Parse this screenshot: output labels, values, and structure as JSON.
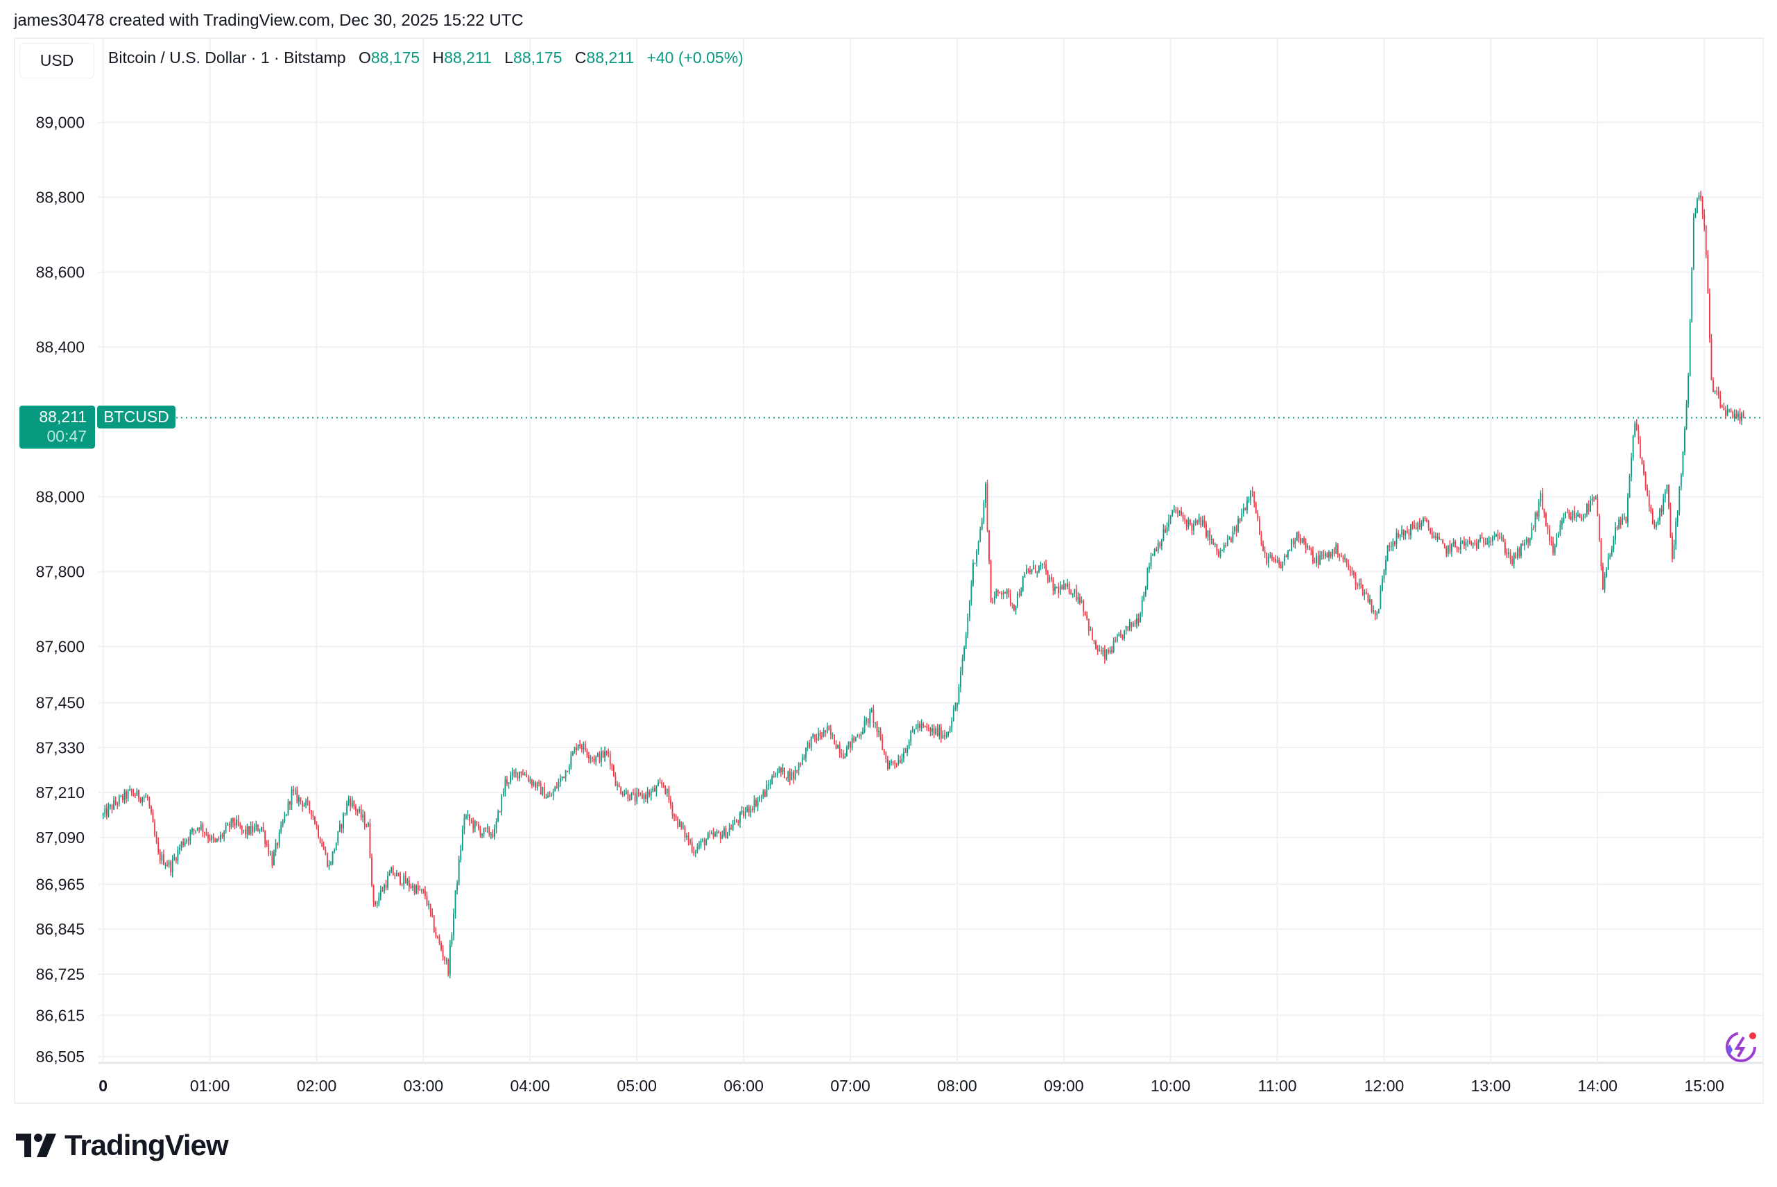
{
  "header": {
    "credit": "james30478 created with TradingView.com, Dec 30, 2025 15:22 UTC"
  },
  "toolbar": {
    "currency": "USD"
  },
  "legend": {
    "symbol": "Bitcoin / U.S. Dollar · 1 · Bitstamp",
    "open_label": "O",
    "open": "88,175",
    "high_label": "H",
    "high": "88,211",
    "low_label": "L",
    "low": "88,175",
    "close_label": "C",
    "close": "88,211",
    "change": "+40 (+0.05%)"
  },
  "price_label": {
    "price": "88,211",
    "countdown": "00:47",
    "symbol": "BTCUSD"
  },
  "footer": {
    "logo": "TradingView"
  },
  "colors": {
    "up": "#089981",
    "down": "#F23645",
    "grid": "#f0f1f4"
  },
  "chart_data": {
    "type": "candlestick",
    "interval": "1 minute",
    "yticks": [
      89000,
      88800,
      88600,
      88400,
      88000,
      87800,
      87600,
      87450,
      87330,
      87210,
      87090,
      86965,
      86845,
      86725,
      86615,
      86505
    ],
    "ytick_labels": [
      "89,000",
      "88,800",
      "88,600",
      "88,400",
      "88,000",
      "87,800",
      "87,600",
      "87,450",
      "87,330",
      "87,210",
      "87,090",
      "86,965",
      "86,845",
      "86,725",
      "86,615",
      "86,505"
    ],
    "xticks": [
      "0",
      "01:00",
      "02:00",
      "03:00",
      "04:00",
      "05:00",
      "06:00",
      "07:00",
      "08:00",
      "09:00",
      "10:00",
      "11:00",
      "12:00",
      "13:00",
      "14:00",
      "15:00"
    ],
    "ylim": [
      86490,
      89100
    ],
    "xlim": [
      "00:00",
      "15:22"
    ],
    "grid": true,
    "last_price": 88211,
    "approx_close_path": [
      {
        "t": "00:00",
        "p": 87148
      },
      {
        "t": "00:06",
        "p": 87178
      },
      {
        "t": "00:15",
        "p": 87209
      },
      {
        "t": "00:25",
        "p": 87194
      },
      {
        "t": "00:31",
        "p": 87042
      },
      {
        "t": "00:38",
        "p": 87012
      },
      {
        "t": "00:44",
        "p": 87073
      },
      {
        "t": "00:54",
        "p": 87124
      },
      {
        "t": "01:03",
        "p": 87073
      },
      {
        "t": "01:13",
        "p": 87133
      },
      {
        "t": "01:19",
        "p": 87103
      },
      {
        "t": "01:29",
        "p": 87118
      },
      {
        "t": "01:35",
        "p": 87027
      },
      {
        "t": "01:46",
        "p": 87209
      },
      {
        "t": "01:57",
        "p": 87163
      },
      {
        "t": "02:07",
        "p": 87012
      },
      {
        "t": "02:18",
        "p": 87194
      },
      {
        "t": "02:29",
        "p": 87118
      },
      {
        "t": "02:32",
        "p": 86906
      },
      {
        "t": "02:42",
        "p": 86997
      },
      {
        "t": "02:51",
        "p": 86967
      },
      {
        "t": "03:01",
        "p": 86936
      },
      {
        "t": "03:07",
        "p": 86830
      },
      {
        "t": "03:14",
        "p": 86740
      },
      {
        "t": "03:18",
        "p": 86936
      },
      {
        "t": "03:23",
        "p": 87148
      },
      {
        "t": "03:33",
        "p": 87103
      },
      {
        "t": "03:40",
        "p": 87103
      },
      {
        "t": "03:46",
        "p": 87239
      },
      {
        "t": "03:55",
        "p": 87269
      },
      {
        "t": "04:01",
        "p": 87239
      },
      {
        "t": "04:11",
        "p": 87194
      },
      {
        "t": "04:20",
        "p": 87269
      },
      {
        "t": "04:27",
        "p": 87345
      },
      {
        "t": "04:36",
        "p": 87300
      },
      {
        "t": "04:44",
        "p": 87315
      },
      {
        "t": "04:49",
        "p": 87224
      },
      {
        "t": "04:59",
        "p": 87194
      },
      {
        "t": "05:08",
        "p": 87209
      },
      {
        "t": "05:15",
        "p": 87233
      },
      {
        "t": "05:21",
        "p": 87148
      },
      {
        "t": "05:32",
        "p": 87057
      },
      {
        "t": "05:40",
        "p": 87088
      },
      {
        "t": "05:50",
        "p": 87103
      },
      {
        "t": "06:02",
        "p": 87163
      },
      {
        "t": "06:12",
        "p": 87209
      },
      {
        "t": "06:18",
        "p": 87269
      },
      {
        "t": "06:28",
        "p": 87254
      },
      {
        "t": "06:37",
        "p": 87345
      },
      {
        "t": "06:47",
        "p": 87375
      },
      {
        "t": "06:56",
        "p": 87315
      },
      {
        "t": "07:06",
        "p": 87375
      },
      {
        "t": "07:12",
        "p": 87421
      },
      {
        "t": "07:21",
        "p": 87285
      },
      {
        "t": "07:28",
        "p": 87300
      },
      {
        "t": "07:37",
        "p": 87390
      },
      {
        "t": "07:44",
        "p": 87375
      },
      {
        "t": "07:54",
        "p": 87366
      },
      {
        "t": "08:00",
        "p": 87451
      },
      {
        "t": "08:05",
        "p": 87632
      },
      {
        "t": "08:09",
        "p": 87814
      },
      {
        "t": "08:14",
        "p": 87935
      },
      {
        "t": "08:16",
        "p": 88026
      },
      {
        "t": "08:19",
        "p": 87723
      },
      {
        "t": "08:26",
        "p": 87754
      },
      {
        "t": "08:32",
        "p": 87708
      },
      {
        "t": "08:39",
        "p": 87799
      },
      {
        "t": "08:48",
        "p": 87814
      },
      {
        "t": "08:54",
        "p": 87754
      },
      {
        "t": "09:04",
        "p": 87754
      },
      {
        "t": "09:10",
        "p": 87723
      },
      {
        "t": "09:17",
        "p": 87602
      },
      {
        "t": "09:23",
        "p": 87572
      },
      {
        "t": "09:33",
        "p": 87632
      },
      {
        "t": "09:42",
        "p": 87678
      },
      {
        "t": "09:49",
        "p": 87844
      },
      {
        "t": "09:55",
        "p": 87890
      },
      {
        "t": "10:02",
        "p": 87965
      },
      {
        "t": "10:12",
        "p": 87920
      },
      {
        "t": "10:17",
        "p": 87935
      },
      {
        "t": "10:27",
        "p": 87844
      },
      {
        "t": "10:36",
        "p": 87905
      },
      {
        "t": "10:46",
        "p": 88026
      },
      {
        "t": "10:52",
        "p": 87844
      },
      {
        "t": "11:02",
        "p": 87814
      },
      {
        "t": "11:11",
        "p": 87905
      },
      {
        "t": "11:21",
        "p": 87829
      },
      {
        "t": "11:34",
        "p": 87859
      },
      {
        "t": "11:43",
        "p": 87784
      },
      {
        "t": "11:50",
        "p": 87738
      },
      {
        "t": "11:56",
        "p": 87678
      },
      {
        "t": "12:02",
        "p": 87874
      },
      {
        "t": "12:12",
        "p": 87905
      },
      {
        "t": "12:22",
        "p": 87935
      },
      {
        "t": "12:34",
        "p": 87859
      },
      {
        "t": "12:44",
        "p": 87874
      },
      {
        "t": "12:53",
        "p": 87874
      },
      {
        "t": "13:03",
        "p": 87905
      },
      {
        "t": "13:12",
        "p": 87829
      },
      {
        "t": "13:22",
        "p": 87890
      },
      {
        "t": "13:28",
        "p": 87996
      },
      {
        "t": "13:35",
        "p": 87844
      },
      {
        "t": "13:41",
        "p": 87950
      },
      {
        "t": "13:51",
        "p": 87950
      },
      {
        "t": "13:59",
        "p": 87996
      },
      {
        "t": "14:03",
        "p": 87754
      },
      {
        "t": "14:10",
        "p": 87920
      },
      {
        "t": "14:16",
        "p": 87935
      },
      {
        "t": "14:21",
        "p": 88207
      },
      {
        "t": "14:26",
        "p": 88056
      },
      {
        "t": "14:32",
        "p": 87905
      },
      {
        "t": "14:39",
        "p": 88026
      },
      {
        "t": "14:42",
        "p": 87829
      },
      {
        "t": "14:48",
        "p": 88117
      },
      {
        "t": "14:51",
        "p": 88328
      },
      {
        "t": "14:54",
        "p": 88752
      },
      {
        "t": "14:58",
        "p": 88812
      },
      {
        "t": "15:01",
        "p": 88661
      },
      {
        "t": "15:04",
        "p": 88298
      },
      {
        "t": "15:10",
        "p": 88237
      },
      {
        "t": "15:17",
        "p": 88207
      },
      {
        "t": "15:22",
        "p": 88211
      }
    ]
  }
}
